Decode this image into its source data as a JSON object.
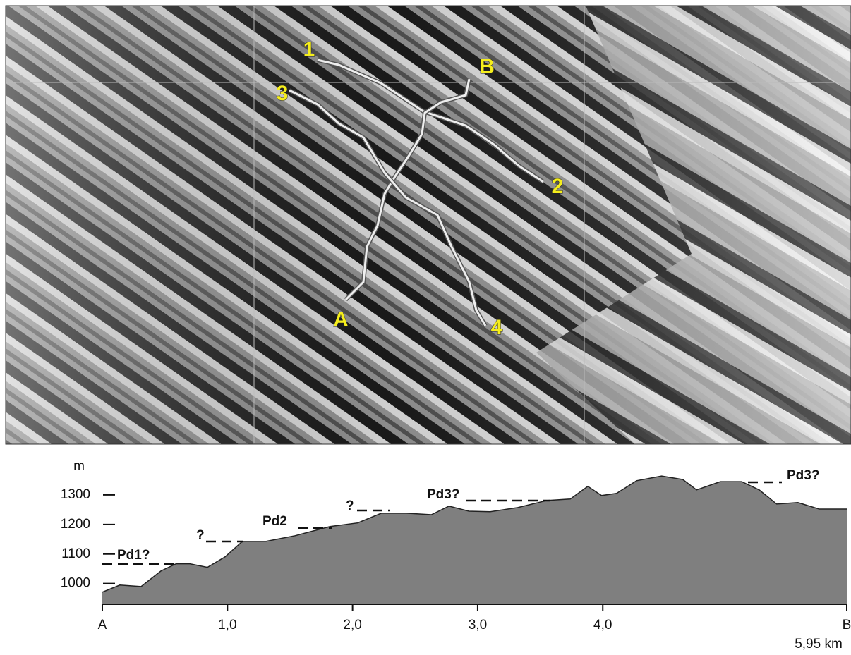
{
  "map": {
    "labels": [
      "1",
      "2",
      "3",
      "4",
      "A",
      "B"
    ]
  },
  "chart_data": {
    "type": "area",
    "y_label": "m",
    "x_end_label": "5,95 km",
    "x": [
      0,
      0.14,
      0.31,
      0.47,
      0.59,
      0.7,
      0.84,
      0.98,
      1.12,
      1.31,
      1.54,
      1.82,
      2.04,
      2.23,
      2.43,
      2.63,
      2.77,
      2.93,
      3.1,
      3.32,
      3.55,
      3.74,
      3.88,
      3.99,
      4.11,
      4.27,
      4.47,
      4.64,
      4.75,
      4.94,
      5.11,
      5.25,
      5.39,
      5.56,
      5.73,
      5.89,
      5.95
    ],
    "values": [
      971,
      995,
      990,
      1043,
      1067,
      1067,
      1055,
      1090,
      1143,
      1143,
      1162,
      1193,
      1205,
      1238,
      1238,
      1233,
      1262,
      1245,
      1243,
      1257,
      1281,
      1286,
      1329,
      1298,
      1305,
      1348,
      1364,
      1352,
      1317,
      1345,
      1345,
      1317,
      1269,
      1274,
      1252,
      1252,
      1252
    ],
    "color": "#7f7f7f",
    "xlim": [
      0,
      5.95
    ],
    "xticks": [
      {
        "value": 0,
        "label": "A"
      },
      {
        "value": 1,
        "label": "1,0"
      },
      {
        "value": 2,
        "label": "2,0"
      },
      {
        "value": 3,
        "label": "3,0"
      },
      {
        "value": 4,
        "label": "4,0"
      },
      {
        "value": 5.95,
        "label": "B"
      }
    ],
    "ylim": [
      930,
      1400
    ],
    "yticks": [
      1000,
      1100,
      1200,
      1300
    ],
    "annotations": [
      "Pd1?",
      "?",
      "Pd2",
      "?",
      "Pd3?",
      "Pd3?"
    ]
  }
}
